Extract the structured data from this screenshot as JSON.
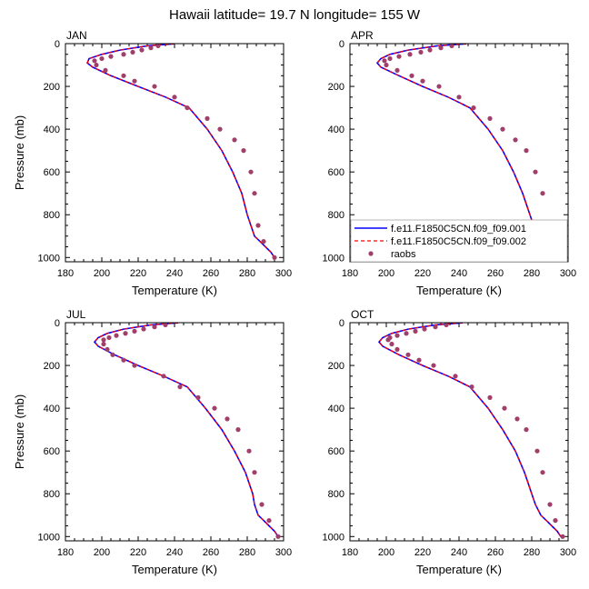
{
  "figure": {
    "title": "Hawaii  latitude= 19.7 N longitude= 155 W"
  },
  "chart_data": [
    {
      "type": "line",
      "panel": "JAN",
      "xlabel": "Temperature (K)",
      "ylabel": "Pressure (mb)",
      "xlim": [
        180,
        300
      ],
      "ylim": [
        1020,
        0
      ],
      "xticks": [
        180,
        200,
        220,
        240,
        260,
        280,
        300
      ],
      "yticks": [
        0,
        200,
        400,
        600,
        800,
        1000
      ],
      "series": [
        {
          "name": "f.e11.F1850C5CN.f09_f09.001",
          "color": "#0000ff",
          "x": [
            240,
            225,
            210,
            200,
            193,
            192,
            195,
            205,
            220,
            235,
            248,
            258,
            266,
            272,
            277,
            280,
            282,
            284,
            287,
            290,
            293,
            295
          ],
          "y": [
            1,
            10,
            30,
            50,
            70,
            90,
            110,
            150,
            200,
            250,
            300,
            400,
            500,
            600,
            700,
            800,
            850,
            900,
            925,
            950,
            975,
            1000
          ]
        },
        {
          "name": "f.e11.F1850C5CN.f09_f09.002",
          "color": "#ff0000",
          "x": [
            240,
            225,
            210,
            200,
            193,
            192,
            195,
            205,
            220,
            235,
            248,
            258,
            266,
            272,
            277,
            280,
            282,
            284,
            287,
            290,
            293,
            295
          ],
          "y": [
            1,
            10,
            30,
            50,
            70,
            90,
            110,
            150,
            200,
            250,
            300,
            400,
            500,
            600,
            700,
            800,
            850,
            900,
            925,
            950,
            975,
            1000
          ]
        },
        {
          "name": "raobs",
          "color": "#a0406a",
          "marker": true,
          "x": [
            231,
            227,
            222,
            217,
            212,
            205,
            200,
            196,
            197,
            202,
            212,
            218,
            229,
            240,
            247,
            258,
            265,
            273,
            278,
            282,
            284,
            286,
            289,
            295
          ],
          "y": [
            10,
            20,
            30,
            40,
            50,
            60,
            70,
            80,
            100,
            125,
            150,
            175,
            200,
            250,
            300,
            350,
            400,
            450,
            500,
            600,
            700,
            850,
            925,
            1000
          ]
        }
      ]
    },
    {
      "type": "line",
      "panel": "APR",
      "xlabel": "Temperature (K)",
      "ylabel": "",
      "xlim": [
        180,
        300
      ],
      "ylim": [
        1020,
        0
      ],
      "xticks": [
        180,
        200,
        220,
        240,
        260,
        280,
        300
      ],
      "yticks": [
        0,
        200,
        400,
        600,
        800,
        1000
      ],
      "legend_position": "bottom-right",
      "series": [
        {
          "name": "f.e11.F1850C5CN.f09_f09.001",
          "color": "#0000ff",
          "x": [
            244,
            228,
            212,
            202,
            197,
            195,
            197,
            207,
            220,
            234,
            246,
            256,
            264,
            270,
            275,
            279,
            281,
            283,
            286,
            289,
            292,
            294
          ],
          "y": [
            1,
            10,
            30,
            50,
            70,
            90,
            110,
            150,
            200,
            250,
            300,
            400,
            500,
            600,
            700,
            800,
            850,
            900,
            925,
            950,
            975,
            1000
          ]
        },
        {
          "name": "f.e11.F1850C5CN.f09_f09.002",
          "color": "#ff0000",
          "x": [
            244,
            228,
            212,
            202,
            197,
            195,
            197,
            207,
            220,
            234,
            246,
            256,
            264,
            270,
            275,
            279,
            281,
            283,
            286,
            289,
            292,
            294
          ],
          "y": [
            1,
            10,
            30,
            50,
            70,
            90,
            110,
            150,
            200,
            250,
            300,
            400,
            500,
            600,
            700,
            800,
            850,
            900,
            925,
            950,
            975,
            1000
          ]
        },
        {
          "name": "raobs",
          "color": "#a0406a",
          "marker": true,
          "x": [
            236,
            230,
            224,
            219,
            213,
            207,
            202,
            199,
            200,
            206,
            214,
            220,
            229,
            240,
            248,
            257,
            264,
            271,
            277,
            282,
            286,
            289,
            292,
            294
          ],
          "y": [
            10,
            20,
            30,
            40,
            50,
            60,
            70,
            80,
            100,
            125,
            150,
            175,
            200,
            250,
            300,
            350,
            400,
            450,
            500,
            600,
            700,
            850,
            925,
            1000
          ]
        }
      ]
    },
    {
      "type": "line",
      "panel": "JUL",
      "xlabel": "Temperature (K)",
      "ylabel": "Pressure (mb)",
      "xlim": [
        180,
        300
      ],
      "ylim": [
        1020,
        0
      ],
      "xticks": [
        180,
        200,
        220,
        240,
        260,
        280,
        300
      ],
      "yticks": [
        0,
        200,
        400,
        600,
        800,
        1000
      ],
      "series": [
        {
          "name": "f.e11.F1850C5CN.f09_f09.001",
          "color": "#0000ff",
          "x": [
            242,
            227,
            212,
            203,
            198,
            196,
            198,
            207,
            220,
            234,
            247,
            257,
            266,
            273,
            279,
            283,
            284,
            286,
            289,
            292,
            295,
            297
          ],
          "y": [
            1,
            10,
            30,
            50,
            70,
            90,
            110,
            150,
            200,
            250,
            300,
            400,
            500,
            600,
            700,
            800,
            850,
            900,
            925,
            950,
            975,
            1000
          ]
        },
        {
          "name": "f.e11.F1850C5CN.f09_f09.002",
          "color": "#ff0000",
          "x": [
            242,
            227,
            212,
            203,
            198,
            196,
            198,
            207,
            220,
            234,
            247,
            257,
            266,
            273,
            279,
            283,
            284,
            286,
            289,
            292,
            295,
            297
          ],
          "y": [
            1,
            10,
            30,
            50,
            70,
            90,
            110,
            150,
            200,
            250,
            300,
            400,
            500,
            600,
            700,
            800,
            850,
            900,
            925,
            950,
            975,
            1000
          ]
        },
        {
          "name": "raobs",
          "color": "#a0406a",
          "marker": true,
          "x": [
            235,
            229,
            223,
            218,
            213,
            208,
            204,
            201,
            201,
            203,
            206,
            212,
            218,
            234,
            243,
            253,
            262,
            269,
            275,
            281,
            284,
            288,
            292,
            297
          ],
          "y": [
            10,
            20,
            30,
            40,
            50,
            60,
            70,
            80,
            100,
            125,
            150,
            175,
            200,
            250,
            300,
            350,
            400,
            450,
            500,
            600,
            700,
            850,
            925,
            1000
          ]
        }
      ]
    },
    {
      "type": "line",
      "panel": "OCT",
      "xlabel": "Temperature (K)",
      "ylabel": "",
      "xlim": [
        180,
        300
      ],
      "ylim": [
        1020,
        0
      ],
      "xticks": [
        180,
        200,
        220,
        240,
        260,
        280,
        300
      ],
      "yticks": [
        0,
        200,
        400,
        600,
        800,
        1000
      ],
      "series": [
        {
          "name": "f.e11.F1850C5CN.f09_f09.001",
          "color": "#0000ff",
          "x": [
            242,
            227,
            212,
            203,
            198,
            196,
            198,
            207,
            220,
            234,
            246,
            256,
            264,
            271,
            276,
            280,
            282,
            285,
            288,
            291,
            294,
            296
          ],
          "y": [
            1,
            10,
            30,
            50,
            70,
            90,
            110,
            150,
            200,
            250,
            300,
            400,
            500,
            600,
            700,
            800,
            850,
            900,
            925,
            950,
            975,
            1000
          ]
        },
        {
          "name": "f.e11.F1850C5CN.f09_f09.002",
          "color": "#ff0000",
          "x": [
            242,
            227,
            212,
            203,
            198,
            196,
            198,
            207,
            220,
            234,
            246,
            256,
            264,
            271,
            276,
            280,
            282,
            285,
            288,
            291,
            294,
            296
          ],
          "y": [
            1,
            10,
            30,
            50,
            70,
            90,
            110,
            150,
            200,
            250,
            300,
            400,
            500,
            600,
            700,
            800,
            850,
            900,
            925,
            950,
            975,
            1000
          ]
        },
        {
          "name": "raobs",
          "color": "#a0406a",
          "marker": true,
          "x": [
            233,
            227,
            221,
            216,
            211,
            206,
            202,
            201,
            203,
            206,
            212,
            218,
            226,
            238,
            247,
            257,
            265,
            272,
            277,
            283,
            286,
            290,
            293,
            297
          ],
          "y": [
            10,
            20,
            30,
            40,
            50,
            60,
            70,
            80,
            100,
            125,
            150,
            175,
            200,
            250,
            300,
            350,
            400,
            450,
            500,
            600,
            700,
            850,
            925,
            1000
          ]
        }
      ]
    }
  ]
}
